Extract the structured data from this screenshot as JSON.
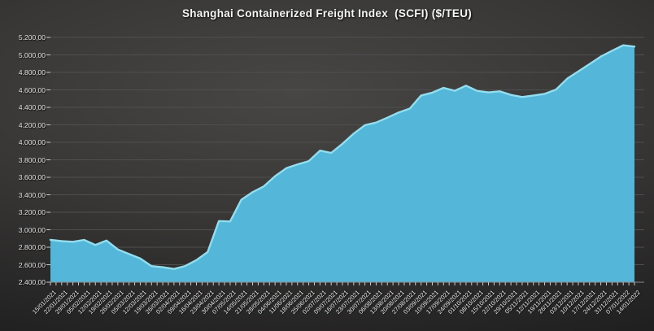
{
  "colors": {
    "background_center": "#474645",
    "background_edge": "#191919",
    "area_fill": "#54B6D8",
    "area_edge_highlight": "#93DDEF",
    "gridline": "#4f4f4f",
    "axis_line": "#8a8a8a",
    "tick_mark": "#c8c8c8",
    "axis_text": "#e2e2e2",
    "title_text": "#f5f5f5"
  },
  "chart_data": {
    "type": "area",
    "title": "Shanghai Containerized Freight Index  (SCFI) ($/TEU)",
    "xlabel": "",
    "ylabel": "",
    "ylim": [
      2400,
      5200
    ],
    "ytick_step": 200,
    "ytick_labels": [
      "5.200,00",
      "5.000,00",
      "4.800,00",
      "4.600,00",
      "4.400,00",
      "4.200,00",
      "4.000,00",
      "3.800,00",
      "3.600,00",
      "3.400,00",
      "3.200,00",
      "3.000,00",
      "2.800,00",
      "2.600,00",
      "2.400,00"
    ],
    "grid": true,
    "legend": "none",
    "x": [
      "15/01/2021",
      "22/01/2021",
      "29/01/2021",
      "05/02/2021",
      "12/02/2021",
      "19/02/2021",
      "26/02/2021",
      "05/03/2021",
      "12/03/2021",
      "19/03/2021",
      "26/03/2021",
      "02/04/2021",
      "09/04/2021",
      "16/04/2021",
      "23/04/2021",
      "30/04/2021",
      "07/05/2021",
      "14/05/2021",
      "21/05/2021",
      "28/05/2021",
      "04/06/2021",
      "11/06/2021",
      "18/06/2021",
      "25/06/2021",
      "02/07/2021",
      "09/07/2021",
      "16/07/2021",
      "23/07/2021",
      "30/07/2021",
      "06/08/2021",
      "13/08/2021",
      "20/08/2021",
      "27/08/2021",
      "03/09/2021",
      "10/09/2021",
      "17/09/2021",
      "24/09/2021",
      "01/10/2021",
      "08/10/2021",
      "15/10/2021",
      "22/10/2021",
      "29/10/2021",
      "05/11/2021",
      "12/11/2021",
      "19/11/2021",
      "26/11/2021",
      "03/12/2021",
      "10/12/2021",
      "17/12/2021",
      "24/12/2021",
      "31/12/2021",
      "07/01/2022",
      "14/01/2022"
    ],
    "series": [
      {
        "name": "SCFI",
        "values": [
          2885,
          2870,
          2862,
          2884,
          2826,
          2876,
          2775,
          2722,
          2671,
          2584,
          2571,
          2552,
          2585,
          2653,
          2745,
          3100,
          3095,
          3343,
          3430,
          3496,
          3613,
          3704,
          3748,
          3785,
          3905,
          3879,
          3983,
          4100,
          4196,
          4226,
          4282,
          4340,
          4386,
          4536,
          4568,
          4623,
          4590,
          4648,
          4588,
          4571,
          4583,
          4542,
          4518,
          4536,
          4554,
          4602,
          4727,
          4811,
          4895,
          4980,
          5047,
          5110,
          5095
        ]
      }
    ]
  }
}
